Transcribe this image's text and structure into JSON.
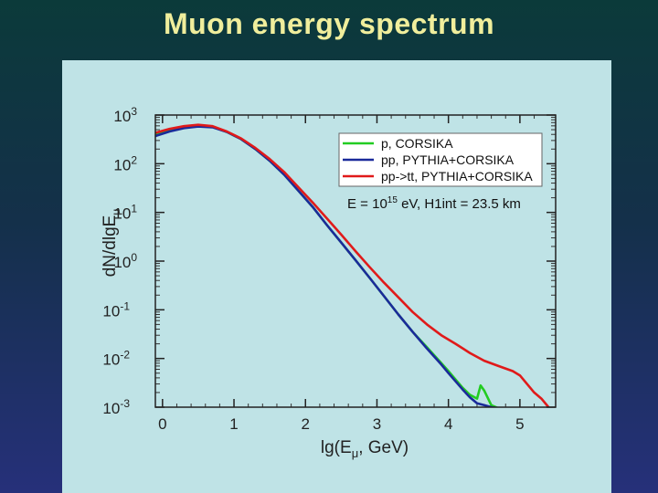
{
  "slide": {
    "title": "Muon energy spectrum"
  },
  "chart_data": {
    "type": "line",
    "title": "",
    "xlabel_main": "lg(E",
    "xlabel_sub": "μ",
    "xlabel_tail": ", GeV)",
    "ylabel_parts": [
      "d",
      "N",
      "/",
      "d",
      "lg",
      "E",
      "μ"
    ],
    "xlim": [
      -0.1,
      5.5
    ],
    "ylim_log10": [
      -3,
      3
    ],
    "y_scale": "log",
    "x_ticks": [
      "0",
      "1",
      "2",
      "3",
      "4",
      "5"
    ],
    "y_ticks": [
      {
        "base": "10",
        "exp": "3"
      },
      {
        "base": "10",
        "exp": "2"
      },
      {
        "base": "10",
        "exp": "1"
      },
      {
        "base": "10",
        "exp": "0"
      },
      {
        "base": "10",
        "exp": "-1"
      },
      {
        "base": "10",
        "exp": "-2"
      },
      {
        "base": "10",
        "exp": "-3"
      }
    ],
    "legend_position": "top-right",
    "annotation": {
      "main": "E = 10",
      "exp": "15",
      "tail": " eV, H1int = 23.5 km"
    },
    "series": [
      {
        "name": "p, CORSIKA",
        "color": "#22cc22",
        "x": [
          -0.1,
          0.1,
          0.3,
          0.5,
          0.7,
          0.9,
          1.1,
          1.3,
          1.5,
          1.7,
          1.9,
          2.1,
          2.3,
          2.5,
          2.7,
          2.9,
          3.1,
          3.3,
          3.5,
          3.7,
          3.9,
          4.0,
          4.1,
          4.2,
          4.3,
          4.4,
          4.45,
          4.5,
          4.6,
          4.7,
          4.75
        ],
        "y": [
          400,
          500,
          580,
          620,
          580,
          450,
          320,
          200,
          115,
          60,
          28,
          13,
          5.5,
          2.4,
          1.05,
          0.45,
          0.19,
          0.08,
          0.035,
          0.017,
          0.008,
          0.0055,
          0.0037,
          0.0025,
          0.0018,
          0.0015,
          0.0028,
          0.0022,
          0.0011,
          0.00095,
          0.0009
        ]
      },
      {
        "name": "pp, PYTHIA+CORSIKA",
        "color": "#1a2a9a",
        "x": [
          -0.1,
          0.1,
          0.3,
          0.5,
          0.7,
          0.9,
          1.1,
          1.3,
          1.5,
          1.7,
          1.9,
          2.1,
          2.3,
          2.5,
          2.7,
          2.9,
          3.1,
          3.3,
          3.5,
          3.7,
          3.9,
          4.0,
          4.1,
          4.2,
          4.3,
          4.4,
          4.5,
          4.6,
          4.7
        ],
        "y": [
          370,
          460,
          540,
          580,
          560,
          450,
          320,
          200,
          115,
          60,
          28,
          13,
          5.5,
          2.4,
          1.05,
          0.45,
          0.19,
          0.08,
          0.035,
          0.016,
          0.0075,
          0.005,
          0.0034,
          0.0023,
          0.0016,
          0.0012,
          0.0011,
          0.001,
          0.00095
        ]
      },
      {
        "name": "pp->tt, PYTHIA+CORSIKA",
        "color": "#e01a1a",
        "x": [
          -0.1,
          0.1,
          0.3,
          0.5,
          0.7,
          0.9,
          1.1,
          1.3,
          1.5,
          1.7,
          1.9,
          2.1,
          2.3,
          2.5,
          2.7,
          2.9,
          3.1,
          3.3,
          3.5,
          3.7,
          3.9,
          4.1,
          4.3,
          4.5,
          4.7,
          4.9,
          5.0,
          5.1,
          5.2,
          5.3,
          5.4
        ],
        "y": [
          430,
          520,
          590,
          630,
          590,
          460,
          330,
          210,
          125,
          68,
          33,
          16,
          7.5,
          3.5,
          1.6,
          0.75,
          0.36,
          0.18,
          0.09,
          0.05,
          0.03,
          0.02,
          0.013,
          0.009,
          0.007,
          0.0055,
          0.0045,
          0.003,
          0.002,
          0.0015,
          0.001
        ]
      }
    ]
  }
}
